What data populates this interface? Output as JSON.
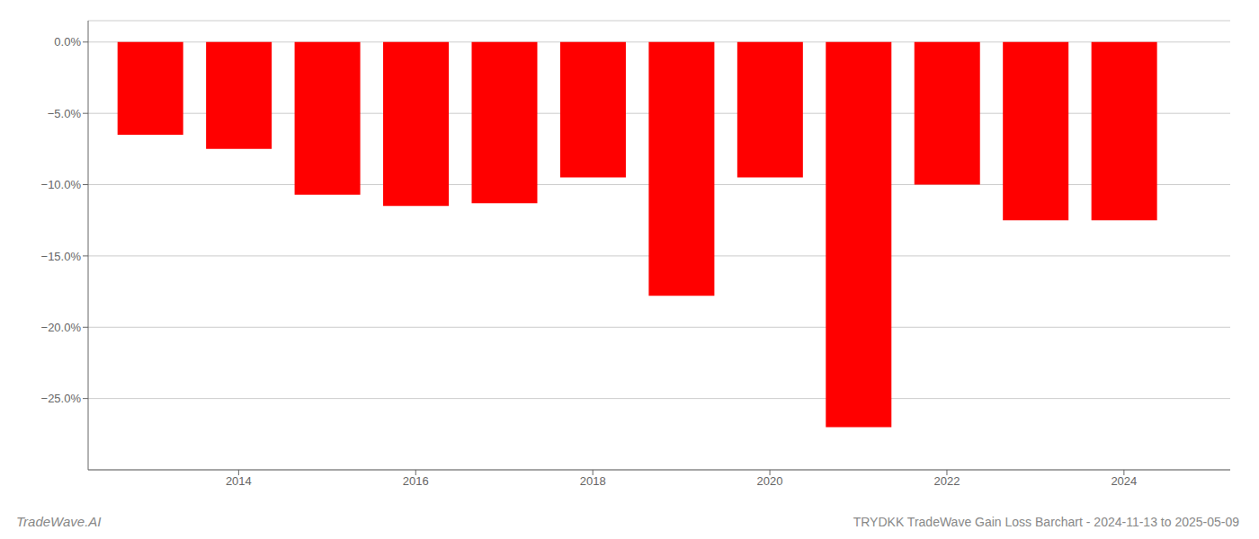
{
  "chart_data": {
    "type": "bar",
    "x": [
      2013,
      2014,
      2015,
      2016,
      2017,
      2018,
      2019,
      2020,
      2021,
      2022,
      2023,
      2024
    ],
    "values": [
      -6.5,
      -7.5,
      -10.7,
      -11.5,
      -11.3,
      -9.5,
      -17.8,
      -9.5,
      -27.0,
      -10.0,
      -12.5,
      -12.5
    ],
    "color": "#ff0000",
    "xlim": [
      2012.3,
      2025.2
    ],
    "xticks": [
      2014,
      2016,
      2018,
      2020,
      2022,
      2024
    ],
    "ylim": [
      -30,
      1.5
    ],
    "yticks": [
      {
        "value": 0.0,
        "label": "0.0%"
      },
      {
        "value": -5.0,
        "label": "−5.0%"
      },
      {
        "value": -10.0,
        "label": "−10.0%"
      },
      {
        "value": -15.0,
        "label": "−15.0%"
      },
      {
        "value": -20.0,
        "label": "−20.0%"
      },
      {
        "value": -25.0,
        "label": "−25.0%"
      }
    ],
    "grid": true,
    "annotations": [
      "TradeWave.AI",
      "TRYDKK TradeWave Gain Loss Barchart - 2024-11-13 to 2025-05-09"
    ]
  }
}
